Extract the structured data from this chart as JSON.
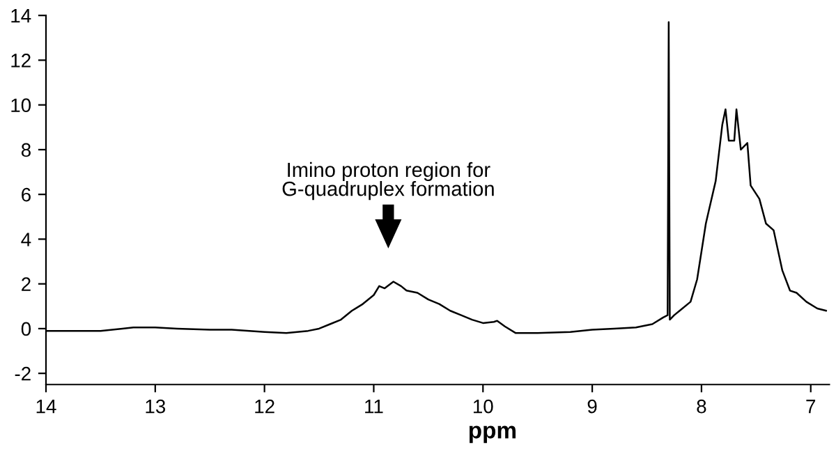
{
  "chart_data": {
    "type": "line",
    "xlabel": "ppm",
    "xlim": [
      14,
      6.83
    ],
    "xticks": [
      14,
      13,
      12,
      11,
      10,
      9,
      8,
      7
    ],
    "ylim": [
      -2.5,
      14
    ],
    "yticks": [
      -2,
      0,
      2,
      4,
      6,
      8,
      10,
      12,
      14
    ],
    "grid": false,
    "legend": false,
    "marker": "none",
    "line_style": "solid",
    "annotations": [
      "Imino proton region for\nG-quadruplex formation"
    ],
    "series": [
      {
        "color": "#000000",
        "x": [
          14,
          13.8,
          13.5,
          13.3,
          13.2,
          13,
          12.8,
          12.5,
          12.3,
          12,
          11.8,
          11.6,
          11.5,
          11.4,
          11.3,
          11.2,
          11.1,
          11.0,
          10.95,
          10.9,
          10.82,
          10.75,
          10.7,
          10.6,
          10.5,
          10.4,
          10.3,
          10.2,
          10.1,
          10.0,
          9.9,
          9.87,
          9.8,
          9.7,
          9.5,
          9.2,
          9.0,
          8.8,
          8.6,
          8.45,
          8.35,
          8.31,
          8.3,
          8.29,
          8.25,
          8.2,
          8.1,
          8.04,
          7.96,
          7.87,
          7.81,
          7.78,
          7.75,
          7.7,
          7.68,
          7.64,
          7.58,
          7.55,
          7.47,
          7.41,
          7.34,
          7.26,
          7.19,
          7.13,
          7.04,
          6.94,
          6.86
        ],
        "values": [
          -0.1,
          -0.1,
          -0.1,
          0.0,
          0.05,
          0.05,
          0.0,
          -0.05,
          -0.05,
          -0.15,
          -0.2,
          -0.1,
          0.0,
          0.2,
          0.4,
          0.8,
          1.1,
          1.5,
          1.9,
          1.8,
          2.1,
          1.9,
          1.7,
          1.6,
          1.3,
          1.1,
          0.8,
          0.6,
          0.4,
          0.25,
          0.3,
          0.35,
          0.1,
          -0.2,
          -0.2,
          -0.15,
          -0.05,
          0.0,
          0.05,
          0.2,
          0.5,
          0.6,
          13.7,
          0.4,
          0.6,
          0.8,
          1.2,
          2.2,
          4.7,
          6.6,
          9.1,
          9.8,
          8.4,
          8.4,
          9.8,
          8.0,
          8.3,
          6.4,
          5.8,
          4.7,
          4.4,
          2.6,
          1.7,
          1.6,
          1.2,
          0.9,
          0.8
        ]
      }
    ]
  }
}
